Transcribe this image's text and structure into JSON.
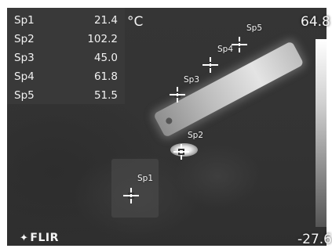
{
  "measurements": [
    {
      "label": "Sp1",
      "value": "21.4"
    },
    {
      "label": "Sp2",
      "value": "102.2"
    },
    {
      "label": "Sp3",
      "value": "45.0"
    },
    {
      "label": "Sp4",
      "value": "61.8"
    },
    {
      "label": "Sp5",
      "value": "51.5"
    }
  ],
  "unit": "°C",
  "scale": {
    "max": "64.8",
    "min": "-27.6"
  },
  "spot_labels": {
    "sp1": "Sp1",
    "sp2": "Sp2",
    "sp3": "Sp3",
    "sp4": "Sp4",
    "sp5": "Sp5"
  },
  "logo": {
    "text": "FLIR",
    "icon": "flir-logo-icon"
  }
}
